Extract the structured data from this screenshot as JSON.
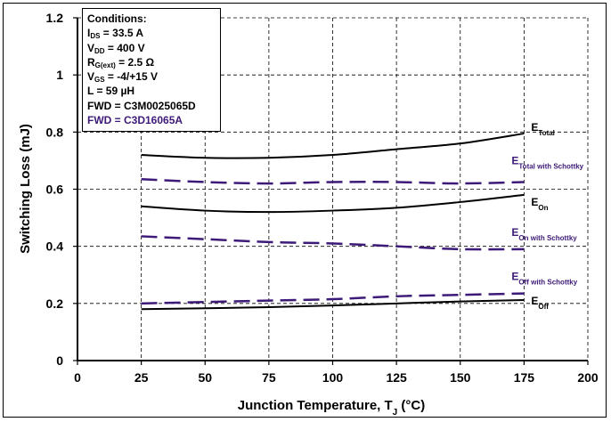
{
  "chart_data": {
    "type": "line",
    "xlabel": "Junction Temperature, T",
    "xlabel_sub": "J",
    "xlabel_suffix": " (°C)",
    "ylabel": "Switching Loss (mJ)",
    "xlim": [
      0,
      200
    ],
    "ylim": [
      0,
      1.2
    ],
    "xticks": [
      "0",
      "25",
      "50",
      "75",
      "100",
      "125",
      "150",
      "175",
      "200"
    ],
    "yticks": [
      "0",
      "0.2",
      "0.4",
      "0.6",
      "0.8",
      "1",
      "1.2"
    ],
    "grid": true,
    "x": [
      25,
      50,
      75,
      100,
      125,
      150,
      175
    ],
    "series": [
      {
        "name": "E",
        "sub": "Total",
        "style": "solid",
        "color": "#000000",
        "values": [
          0.72,
          0.71,
          0.71,
          0.72,
          0.74,
          0.76,
          0.795
        ]
      },
      {
        "name": "E",
        "sub": "Total with Schottky",
        "style": "dashed",
        "color": "#3d1a78",
        "values": [
          0.635,
          0.625,
          0.62,
          0.625,
          0.625,
          0.62,
          0.625
        ]
      },
      {
        "name": "E",
        "sub": "On",
        "style": "solid",
        "color": "#000000",
        "values": [
          0.54,
          0.525,
          0.52,
          0.525,
          0.535,
          0.555,
          0.58
        ]
      },
      {
        "name": "E",
        "sub": "On with Schottky",
        "style": "dashed",
        "color": "#3d1a78",
        "values": [
          0.435,
          0.425,
          0.415,
          0.41,
          0.4,
          0.39,
          0.39
        ]
      },
      {
        "name": "E",
        "sub": "Off with Schottky",
        "style": "dashed",
        "color": "#3d1a78",
        "values": [
          0.2,
          0.205,
          0.21,
          0.215,
          0.225,
          0.23,
          0.235
        ]
      },
      {
        "name": "E",
        "sub": "Off",
        "style": "solid",
        "color": "#000000",
        "values": [
          0.18,
          0.183,
          0.187,
          0.193,
          0.2,
          0.207,
          0.212
        ]
      }
    ]
  },
  "conditions": {
    "title": "Conditions:",
    "lines": [
      {
        "pre": "I",
        "sub": "DS",
        "post": " = 33.5 A"
      },
      {
        "pre": "V",
        "sub": "DD",
        "post": " = 400 V"
      },
      {
        "pre": "R",
        "sub": "G(ext)",
        "post": " = 2.5 Ω"
      },
      {
        "pre": "V",
        "sub": "GS",
        "post": " = -4/+15 V"
      },
      {
        "pre": "L",
        "sub": "",
        "post": " = 59 µH"
      },
      {
        "pre": "FWD = C3M0025065D",
        "sub": "",
        "post": ""
      }
    ],
    "highlight": "FWD = C3D16065A",
    "highlight_color": "#3d1a78"
  }
}
